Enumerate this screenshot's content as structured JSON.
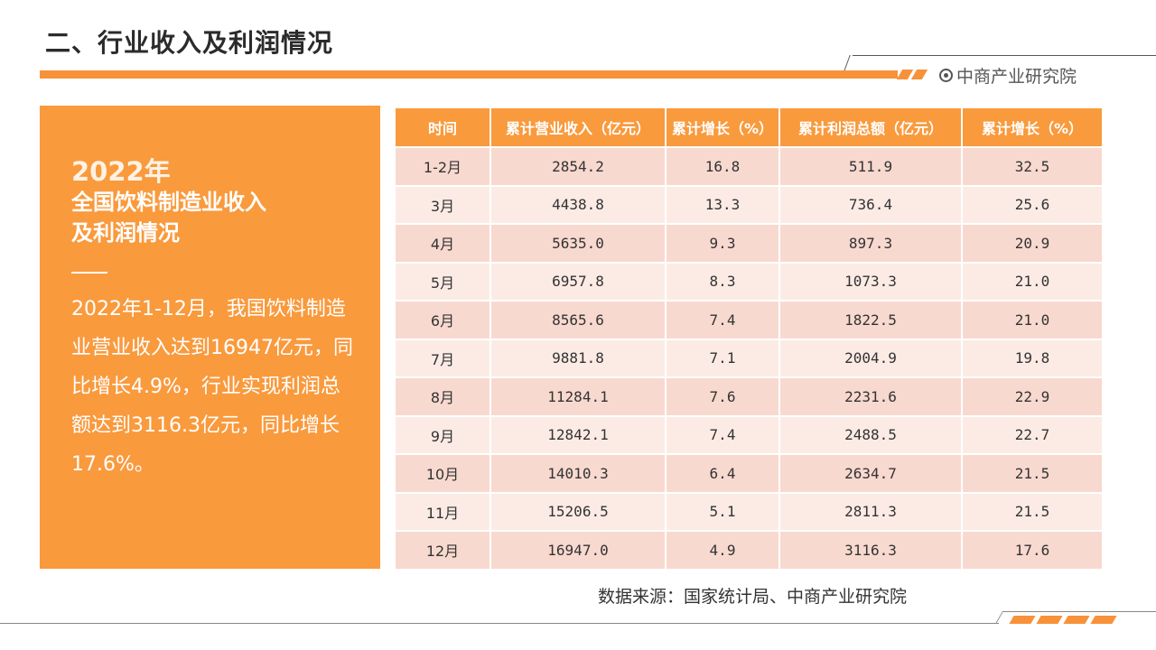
{
  "header": {
    "title": "二、行业收入及利润情况",
    "brand_name": "中商产业研究院",
    "brand_icon": "target-circle-icon",
    "accent_color": "#f7923a"
  },
  "panel": {
    "year": "2022年",
    "heading_line1": "全国饮料制造业收入",
    "heading_line2": "及利润情况",
    "body": "2022年1-12月，我国饮料制造业营业收入达到16947亿元，同比增长4.9%，行业实现利润总额达到3116.3亿元，同比增长17.6%。",
    "background_color": "#f99a3d"
  },
  "table": {
    "columns": [
      "时间",
      "累计营业收入（亿元）",
      "累计增长（%）",
      "累计利润总额（亿元）",
      "累计增长（%）"
    ],
    "rows": [
      [
        "1-2月",
        "2854.2",
        "16.8",
        "511.9",
        "32.5"
      ],
      [
        "3月",
        "4438.8",
        "13.3",
        "736.4",
        "25.6"
      ],
      [
        "4月",
        "5635.0",
        "9.3",
        "897.3",
        "20.9"
      ],
      [
        "5月",
        "6957.8",
        "8.3",
        "1073.3",
        "21.0"
      ],
      [
        "6月",
        "8565.6",
        "7.4",
        "1822.5",
        "21.0"
      ],
      [
        "7月",
        "9881.8",
        "7.1",
        "2004.9",
        "19.8"
      ],
      [
        "8月",
        "11284.1",
        "7.6",
        "2231.6",
        "22.9"
      ],
      [
        "9月",
        "12842.1",
        "7.4",
        "2488.5",
        "22.7"
      ],
      [
        "10月",
        "14010.3",
        "6.4",
        "2634.7",
        "21.5"
      ],
      [
        "11月",
        "15206.5",
        "5.1",
        "2811.3",
        "21.5"
      ],
      [
        "12月",
        "16947.0",
        "4.9",
        "3116.3",
        "17.6"
      ]
    ]
  },
  "source_note": "数据来源：国家统计局、中商产业研究院"
}
